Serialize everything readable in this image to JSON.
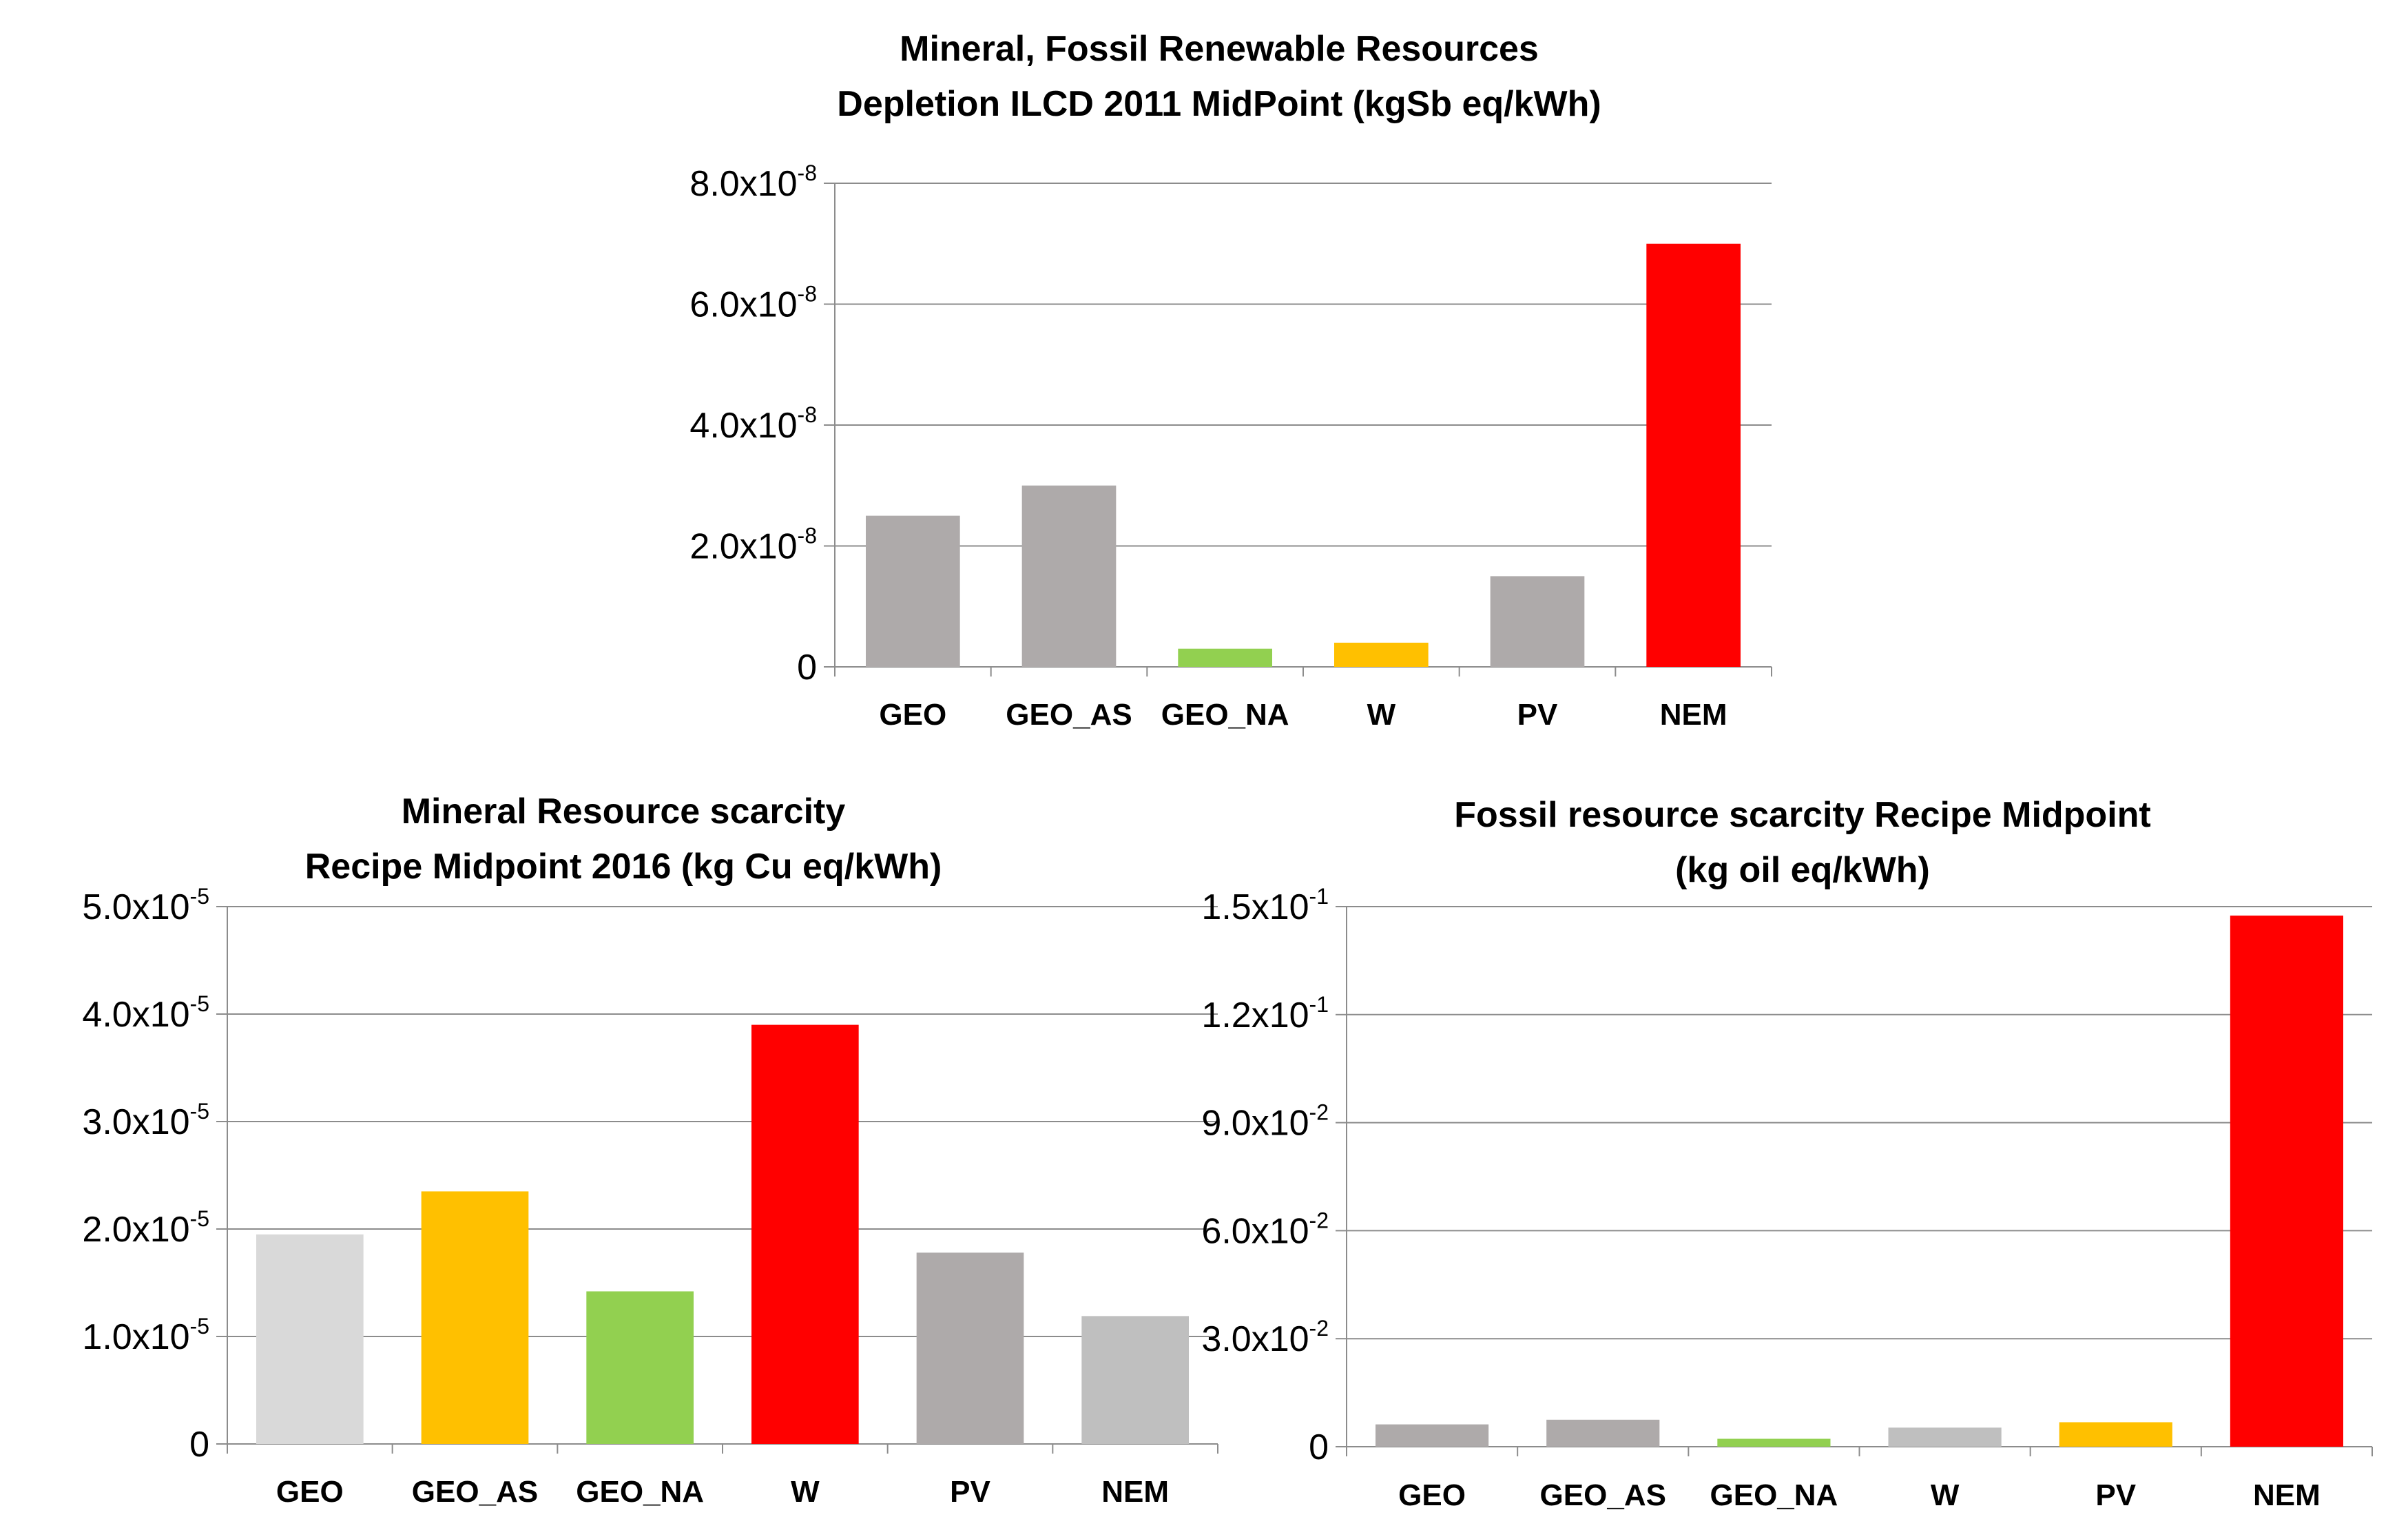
{
  "chart_data": [
    {
      "type": "bar",
      "title": [
        "Mineral, Fossil Renewable  Resources",
        "Depletion ILCD 2011 MidPoint (kgSb eq/kWh)"
      ],
      "categories": [
        "GEO",
        "GEO_AS",
        "GEO_NA",
        "W",
        "PV",
        "NEM"
      ],
      "values": [
        2.5e-08,
        3e-08,
        3e-09,
        4e-09,
        1.5e-08,
        7e-08
      ],
      "colors": [
        "#aeaaaa",
        "#aeaaaa",
        "#92d050",
        "#ffc000",
        "#aeaaaa",
        "#ff0000"
      ],
      "ylim": [
        0,
        8e-08
      ],
      "yticks": [
        {
          "value": 0,
          "base": "0",
          "exp": ""
        },
        {
          "value": 2e-08,
          "base": "2.0x10",
          "exp": "-8"
        },
        {
          "value": 4e-08,
          "base": "4.0x10",
          "exp": "-8"
        },
        {
          "value": 6e-08,
          "base": "6.0x10",
          "exp": "-8"
        },
        {
          "value": 8e-08,
          "base": "8.0x10",
          "exp": "-8"
        }
      ],
      "grid": true
    },
    {
      "type": "bar",
      "title": [
        "Mineral  Resource scarcity",
        "Recipe Midpoint 2016 (kg Cu eq/kWh)"
      ],
      "categories": [
        "GEO",
        "GEO_AS",
        "GEO_NA",
        "W",
        "PV",
        "NEM"
      ],
      "values": [
        1.95e-05,
        2.35e-05,
        1.42e-05,
        3.9e-05,
        1.78e-05,
        1.19e-05
      ],
      "colors": [
        "#d9d9d9",
        "#ffc000",
        "#92d050",
        "#ff0000",
        "#aeaaaa",
        "#bfbfbf"
      ],
      "ylim": [
        0,
        5e-05
      ],
      "yticks": [
        {
          "value": 0,
          "base": "0",
          "exp": ""
        },
        {
          "value": 1e-05,
          "base": "1.0x10",
          "exp": "-5"
        },
        {
          "value": 2e-05,
          "base": "2.0x10",
          "exp": "-5"
        },
        {
          "value": 3e-05,
          "base": "3.0x10",
          "exp": "-5"
        },
        {
          "value": 4e-05,
          "base": "4.0x10",
          "exp": "-5"
        },
        {
          "value": 5e-05,
          "base": "5.0x10",
          "exp": "-5"
        }
      ],
      "grid": true
    },
    {
      "type": "bar",
      "title": [
        "Fossil resource scarcity Recipe Midpoint",
        "(kg oil eq/kWh)"
      ],
      "categories": [
        "GEO",
        "GEO_AS",
        "GEO_NA",
        "W",
        "PV",
        "NEM"
      ],
      "values": [
        0.0062,
        0.0075,
        0.0022,
        0.0053,
        0.0068,
        0.1475
      ],
      "colors": [
        "#aeaaaa",
        "#aeaaaa",
        "#92d050",
        "#bfbfbf",
        "#ffc000",
        "#ff0000"
      ],
      "ylim": [
        0,
        0.15
      ],
      "yticks": [
        {
          "value": 0,
          "base": "0",
          "exp": ""
        },
        {
          "value": 0.03,
          "base": "3.0x10",
          "exp": "-2"
        },
        {
          "value": 0.06,
          "base": "6.0x10",
          "exp": "-2"
        },
        {
          "value": 0.09,
          "base": "9.0x10",
          "exp": "-2"
        },
        {
          "value": 0.12,
          "base": "1.2x10",
          "exp": "-1"
        },
        {
          "value": 0.15,
          "base": "1.5x10",
          "exp": "-1"
        }
      ],
      "grid": true
    }
  ]
}
